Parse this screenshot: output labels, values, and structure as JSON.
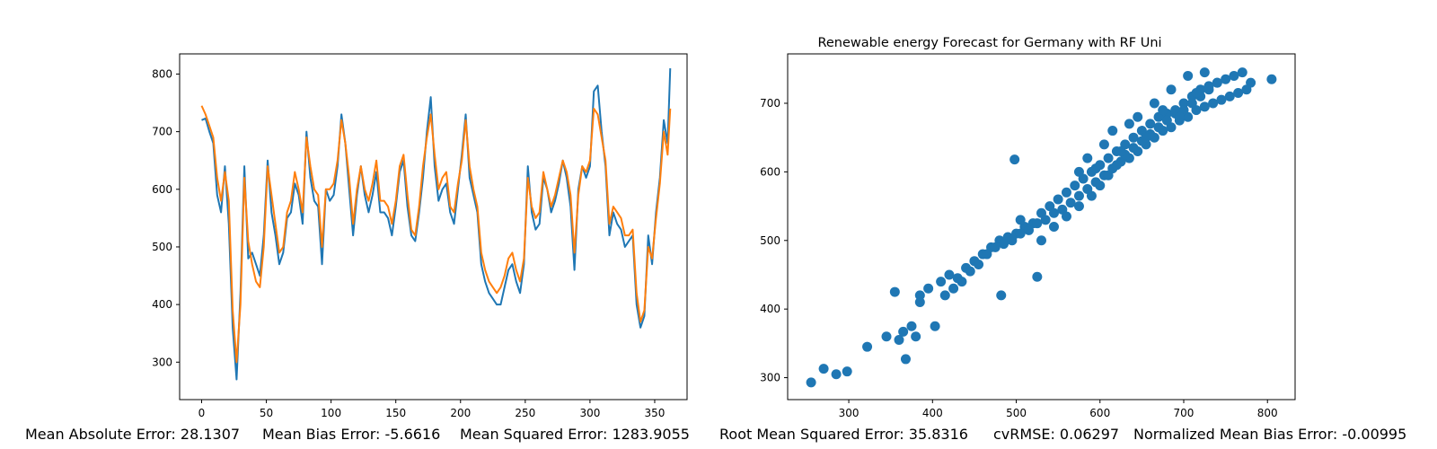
{
  "chart_data": [
    {
      "type": "line",
      "title": "",
      "xlabel": "",
      "ylabel": "",
      "xlim": [
        -17,
        375
      ],
      "ylim": [
        235,
        835
      ],
      "xticks": [
        0,
        50,
        100,
        150,
        200,
        250,
        300,
        350
      ],
      "yticks": [
        300,
        400,
        500,
        600,
        700,
        800
      ],
      "grid": false,
      "series": [
        {
          "color": "#1f77b4",
          "x": [
            0,
            3,
            6,
            9,
            12,
            15,
            18,
            21,
            24,
            27,
            30,
            33,
            36,
            39,
            42,
            45,
            48,
            51,
            54,
            57,
            60,
            63,
            66,
            69,
            72,
            75,
            78,
            81,
            84,
            87,
            90,
            93,
            96,
            99,
            102,
            105,
            108,
            111,
            114,
            117,
            120,
            123,
            126,
            129,
            132,
            135,
            138,
            141,
            144,
            147,
            150,
            153,
            156,
            159,
            162,
            165,
            168,
            171,
            174,
            177,
            180,
            183,
            186,
            189,
            192,
            195,
            198,
            201,
            204,
            207,
            210,
            213,
            216,
            219,
            222,
            225,
            228,
            231,
            234,
            237,
            240,
            243,
            246,
            249,
            252,
            255,
            258,
            261,
            264,
            267,
            270,
            273,
            276,
            279,
            282,
            285,
            288,
            291,
            294,
            297,
            300,
            303,
            306,
            309,
            312,
            315,
            318,
            321,
            324,
            327,
            330,
            333,
            336,
            339,
            342,
            345,
            348,
            351,
            354,
            357,
            360,
            362
          ],
          "values": [
            720,
            723,
            700,
            680,
            590,
            560,
            640,
            540,
            360,
            270,
            420,
            640,
            480,
            490,
            470,
            450,
            520,
            650,
            560,
            520,
            470,
            490,
            550,
            560,
            610,
            590,
            540,
            700,
            620,
            580,
            570,
            470,
            600,
            580,
            590,
            640,
            730,
            680,
            600,
            520,
            590,
            640,
            590,
            560,
            590,
            630,
            560,
            560,
            550,
            520,
            570,
            630,
            650,
            570,
            520,
            510,
            560,
            620,
            700,
            760,
            640,
            580,
            600,
            610,
            560,
            540,
            600,
            660,
            730,
            620,
            590,
            560,
            470,
            440,
            420,
            410,
            400,
            400,
            430,
            460,
            470,
            440,
            420,
            470,
            640,
            560,
            530,
            540,
            620,
            600,
            560,
            580,
            610,
            650,
            620,
            570,
            460,
            600,
            640,
            620,
            640,
            770,
            780,
            700,
            640,
            520,
            560,
            540,
            530,
            500,
            510,
            520,
            400,
            360,
            380,
            520,
            470,
            560,
            620,
            720,
            680,
            810
          ]
        },
        {
          "color": "#ff7f0e",
          "x": [
            0,
            3,
            6,
            9,
            12,
            15,
            18,
            21,
            24,
            27,
            30,
            33,
            36,
            39,
            42,
            45,
            48,
            51,
            54,
            57,
            60,
            63,
            66,
            69,
            72,
            75,
            78,
            81,
            84,
            87,
            90,
            93,
            96,
            99,
            102,
            105,
            108,
            111,
            114,
            117,
            120,
            123,
            126,
            129,
            132,
            135,
            138,
            141,
            144,
            147,
            150,
            153,
            156,
            159,
            162,
            165,
            168,
            171,
            174,
            177,
            180,
            183,
            186,
            189,
            192,
            195,
            198,
            201,
            204,
            207,
            210,
            213,
            216,
            219,
            222,
            225,
            228,
            231,
            234,
            237,
            240,
            243,
            246,
            249,
            252,
            255,
            258,
            261,
            264,
            267,
            270,
            273,
            276,
            279,
            282,
            285,
            288,
            291,
            294,
            297,
            300,
            303,
            306,
            309,
            312,
            315,
            318,
            321,
            324,
            327,
            330,
            333,
            336,
            339,
            342,
            345,
            348,
            351,
            354,
            357,
            360,
            362
          ],
          "values": [
            745,
            730,
            710,
            690,
            620,
            580,
            630,
            580,
            390,
            300,
            400,
            620,
            510,
            470,
            440,
            430,
            500,
            640,
            590,
            540,
            490,
            500,
            560,
            580,
            630,
            600,
            560,
            690,
            640,
            600,
            590,
            500,
            600,
            600,
            610,
            650,
            720,
            680,
            620,
            540,
            600,
            640,
            600,
            580,
            610,
            650,
            580,
            580,
            570,
            540,
            580,
            640,
            660,
            590,
            530,
            520,
            570,
            640,
            690,
            730,
            660,
            600,
            620,
            630,
            570,
            560,
            610,
            650,
            720,
            640,
            600,
            570,
            490,
            460,
            440,
            430,
            420,
            430,
            450,
            480,
            490,
            460,
            440,
            480,
            620,
            570,
            550,
            560,
            630,
            600,
            570,
            590,
            620,
            650,
            630,
            590,
            490,
            590,
            640,
            630,
            650,
            740,
            730,
            690,
            650,
            540,
            570,
            560,
            550,
            520,
            520,
            530,
            420,
            370,
            390,
            500,
            480,
            550,
            610,
            700,
            660,
            740
          ]
        }
      ]
    },
    {
      "type": "scatter",
      "title": "Renewable energy Forecast for Germany with RF Uni",
      "xlabel": "",
      "ylabel": "",
      "xlim": [
        227,
        833
      ],
      "ylim": [
        268,
        772
      ],
      "xticks": [
        300,
        400,
        500,
        600,
        700,
        800
      ],
      "yticks": [
        300,
        400,
        500,
        600,
        700
      ],
      "grid": false,
      "color": "#1f77b4",
      "x": [
        255,
        270,
        285,
        298,
        322,
        345,
        360,
        375,
        385,
        395,
        410,
        420,
        430,
        440,
        450,
        460,
        470,
        480,
        490,
        500,
        510,
        520,
        530,
        540,
        550,
        560,
        570,
        580,
        590,
        600,
        610,
        620,
        630,
        640,
        650,
        660,
        670,
        680,
        690,
        700,
        710,
        720,
        730,
        740,
        750,
        760,
        770,
        780,
        805,
        355,
        365,
        368,
        380,
        385,
        403,
        415,
        425,
        435,
        445,
        455,
        465,
        475,
        485,
        495,
        505,
        515,
        525,
        535,
        545,
        555,
        565,
        575,
        585,
        595,
        605,
        615,
        625,
        635,
        645,
        655,
        665,
        675,
        685,
        695,
        705,
        715,
        725,
        735,
        745,
        755,
        765,
        775,
        525,
        498,
        482,
        505,
        530,
        545,
        560,
        575,
        590,
        600,
        610,
        620,
        630,
        640,
        650,
        660,
        670,
        680,
        690,
        700,
        710,
        720,
        730,
        740,
        575,
        585,
        595,
        605,
        615,
        625,
        635,
        645,
        655,
        665,
        675,
        685,
        695,
        705,
        715,
        725
      ],
      "y": [
        293,
        313,
        305,
        309,
        345,
        360,
        355,
        375,
        420,
        430,
        440,
        450,
        445,
        460,
        470,
        480,
        490,
        500,
        505,
        510,
        520,
        525,
        540,
        550,
        560,
        570,
        580,
        590,
        600,
        610,
        620,
        630,
        640,
        650,
        660,
        670,
        680,
        685,
        690,
        700,
        710,
        720,
        725,
        730,
        735,
        740,
        745,
        730,
        735,
        425,
        367,
        327,
        360,
        410,
        375,
        420,
        430,
        440,
        455,
        465,
        480,
        490,
        495,
        500,
        510,
        515,
        525,
        530,
        540,
        545,
        555,
        565,
        575,
        585,
        595,
        605,
        615,
        620,
        630,
        640,
        650,
        660,
        665,
        675,
        680,
        690,
        695,
        700,
        705,
        710,
        715,
        720,
        447,
        618,
        420,
        530,
        500,
        520,
        535,
        550,
        565,
        580,
        595,
        610,
        625,
        635,
        645,
        655,
        665,
        675,
        685,
        690,
        700,
        710,
        720,
        730,
        600,
        620,
        605,
        640,
        660,
        630,
        670,
        680,
        650,
        700,
        690,
        720,
        680,
        740,
        715,
        745
      ]
    }
  ],
  "footer": {
    "mae": "Mean Absolute Error: 28.1307",
    "mbe": "Mean Bias Error: -5.6616",
    "mse": "Mean Squared Error: 1283.9055",
    "rmse": "Root Mean Squared Error: 35.8316",
    "cvrmse": "cvRMSE: 0.06297",
    "nmbe": "Normalized Mean Bias Error: -0.00995"
  }
}
